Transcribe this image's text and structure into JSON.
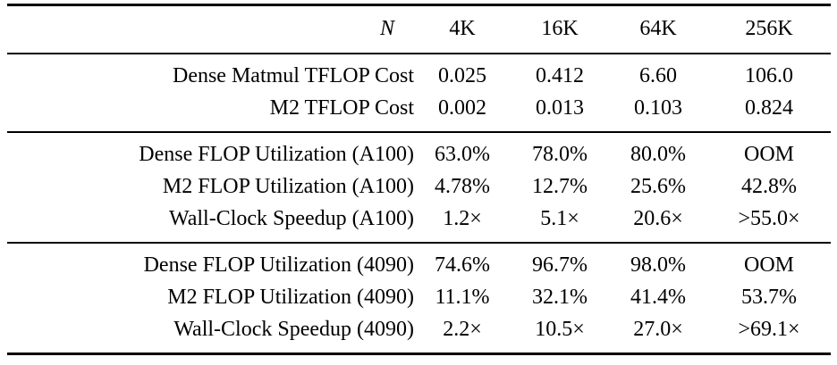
{
  "table": {
    "header": {
      "row_label": "N",
      "columns": [
        "4K",
        "16K",
        "64K",
        "256K"
      ]
    },
    "sections": [
      {
        "rows": [
          {
            "label": "Dense Matmul TFLOP Cost",
            "values": [
              "0.025",
              "0.412",
              "6.60",
              "106.0"
            ]
          },
          {
            "label": "M2 TFLOP Cost",
            "values": [
              "0.002",
              "0.013",
              "0.103",
              "0.824"
            ]
          }
        ]
      },
      {
        "rows": [
          {
            "label": "Dense FLOP Utilization (A100)",
            "values": [
              "63.0%",
              "78.0%",
              "80.0%",
              "OOM"
            ]
          },
          {
            "label": "M2 FLOP Utilization (A100)",
            "values": [
              "4.78%",
              "12.7%",
              "25.6%",
              "42.8%"
            ]
          },
          {
            "label": "Wall-Clock Speedup (A100)",
            "values": [
              "1.2×",
              "5.1×",
              "20.6×",
              ">55.0×"
            ]
          }
        ]
      },
      {
        "rows": [
          {
            "label": "Dense FLOP Utilization (4090)",
            "values": [
              "74.6%",
              "96.7%",
              "98.0%",
              "OOM"
            ]
          },
          {
            "label": "M2 FLOP Utilization (4090)",
            "values": [
              "11.1%",
              "32.1%",
              "41.4%",
              "53.7%"
            ]
          },
          {
            "label": "Wall-Clock Speedup (4090)",
            "values": [
              "2.2×",
              "10.5×",
              "27.0×",
              ">69.1×"
            ]
          }
        ]
      }
    ]
  },
  "colors": {
    "background": "#ffffff",
    "text": "#000000",
    "rule": "#000000"
  }
}
